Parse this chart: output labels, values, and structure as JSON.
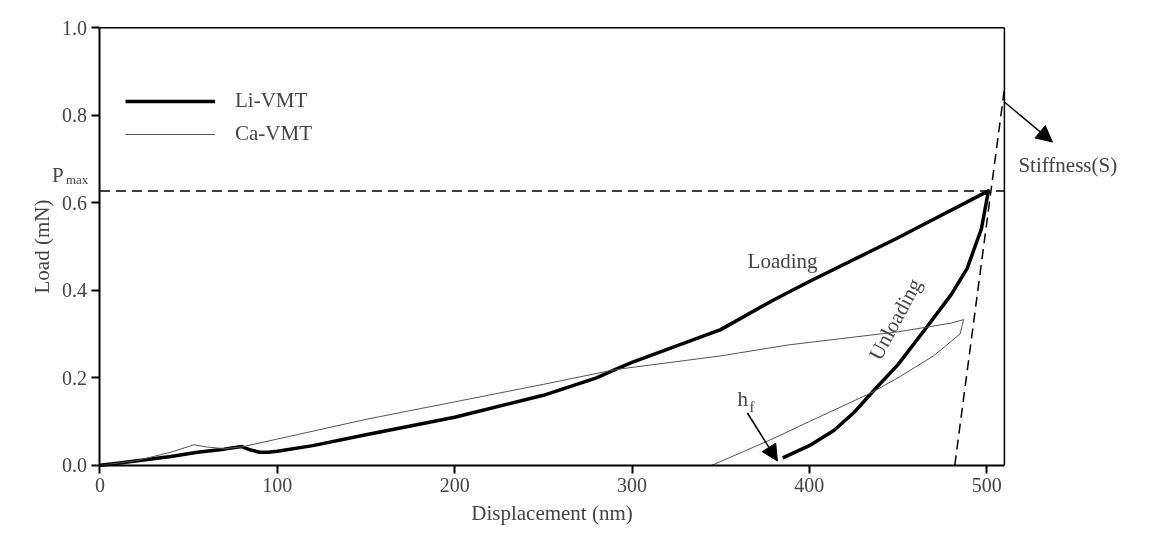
{
  "chart_data": {
    "type": "line",
    "xlabel": "Displacement (nm)",
    "ylabel": "Load (mN)",
    "xlim": [
      0,
      510
    ],
    "ylim": [
      0,
      1.0
    ],
    "xticks": [
      0,
      100,
      200,
      300,
      400,
      500
    ],
    "yticks": [
      {
        "value": 0,
        "label": "0.0"
      },
      {
        "value": 0.2,
        "label": "0.2"
      },
      {
        "value": 0.4,
        "label": "0.4"
      },
      {
        "value": 0.6,
        "label": "0.6"
      },
      {
        "value": 0.8,
        "label": "0.8"
      },
      {
        "value": 1.0,
        "label": "1.0"
      }
    ],
    "grid": false,
    "legend": "top left",
    "marker": "none",
    "series": [
      {
        "name": "Li-VMT",
        "color": "#000000",
        "x": [
          0,
          10,
          20,
          40,
          55,
          70,
          80,
          85,
          90,
          95,
          100,
          120,
          150,
          200,
          250,
          280,
          291,
          300,
          350,
          379,
          400,
          450,
          501,
          497,
          489,
          480,
          467,
          450,
          437,
          425,
          414,
          400,
          385
        ],
        "values": [
          0,
          0.005,
          0.01,
          0.02,
          0.03,
          0.037,
          0.043,
          0.035,
          0.03,
          0.03,
          0.032,
          0.045,
          0.07,
          0.11,
          0.16,
          0.2,
          0.22,
          0.235,
          0.31,
          0.376,
          0.42,
          0.52,
          0.627,
          0.54,
          0.45,
          0.39,
          0.32,
          0.23,
          0.174,
          0.12,
          0.08,
          0.045,
          0.017
        ]
      },
      {
        "name": "Ca-VMT",
        "color": "#555555",
        "x": [
          0,
          20,
          40,
          53,
          60,
          70,
          80,
          100,
          150,
          200,
          250,
          291,
          350,
          388,
          450,
          480,
          487,
          485,
          470,
          450,
          434,
          400,
          379,
          345
        ],
        "values": [
          0,
          0.01,
          0.03,
          0.047,
          0.042,
          0.038,
          0.042,
          0.06,
          0.105,
          0.145,
          0.185,
          0.219,
          0.25,
          0.275,
          0.305,
          0.325,
          0.333,
          0.3,
          0.25,
          0.2,
          0.164,
          0.1,
          0.06,
          0
        ]
      },
      {
        "type": "line",
        "color": "#000000",
        "line_style": "dashed",
        "x": [
          482,
          510
        ],
        "values": [
          0,
          0.86
        ]
      }
    ],
    "ref_lines": [
      {
        "axis": "y",
        "value": 0.627,
        "label": "P$_{max}$",
        "color": "#000000",
        "line_style": "dashed"
      }
    ],
    "annotations": [
      "Loading",
      {
        "text": "Unloading",
        "x": 455,
        "y": 0.3
      },
      {
        "text": "h$_{f}$",
        "x": 382,
        "y": 0.01
      },
      "Stiffness(S)"
    ]
  }
}
